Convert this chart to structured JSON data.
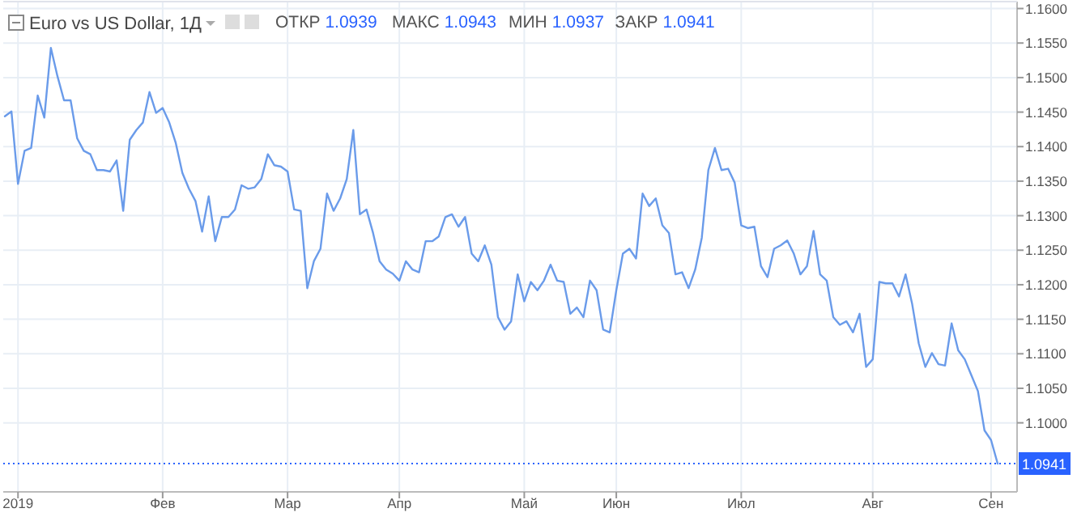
{
  "chart_data": {
    "type": "line",
    "title": "Euro vs US Dollar, 1Д",
    "annotations": [
      "ОТКР 1.0939",
      "МАКС 1.0943",
      "МИН 1.0937",
      "ЗАКР 1.0941"
    ],
    "categories": [
      null,
      null,
      "2019",
      null,
      null,
      null,
      null,
      null,
      null,
      null,
      null,
      null,
      null,
      null,
      null,
      null,
      null,
      null,
      null,
      null,
      null,
      null,
      null,
      null,
      "Фев",
      null,
      null,
      null,
      null,
      null,
      null,
      null,
      null,
      null,
      null,
      null,
      null,
      null,
      null,
      null,
      null,
      null,
      null,
      "Мар",
      null,
      null,
      null,
      null,
      null,
      null,
      null,
      null,
      null,
      null,
      null,
      null,
      null,
      null,
      null,
      null,
      "Апр",
      null,
      null,
      null,
      null,
      null,
      null,
      null,
      null,
      null,
      null,
      null,
      null,
      null,
      null,
      null,
      null,
      null,
      null,
      "Май",
      null,
      null,
      null,
      null,
      null,
      null,
      null,
      null,
      null,
      null,
      null,
      null,
      null,
      "Июн",
      null,
      null,
      null,
      null,
      null,
      null,
      null,
      null,
      null,
      null,
      null,
      null,
      null,
      null,
      null,
      null,
      null,
      null,
      "Июл",
      null,
      null,
      null,
      null,
      null,
      null,
      null,
      null,
      null,
      null,
      null,
      null,
      null,
      null,
      null,
      null,
      null,
      null,
      null,
      "Авг",
      null,
      null,
      null,
      null,
      null,
      null,
      null,
      null,
      null,
      null,
      null,
      null,
      null,
      null,
      null,
      null,
      null,
      "Сен",
      null
    ],
    "series": [
      {
        "color": "#6a9bea",
        "values": [
          1.1444,
          1.1451,
          1.1346,
          1.1394,
          1.1398,
          1.1474,
          1.1442,
          1.1543,
          1.1502,
          1.1467,
          1.1467,
          1.1412,
          1.1394,
          1.1389,
          1.1366,
          1.1366,
          1.1364,
          1.138,
          1.1307,
          1.141,
          1.1424,
          1.1435,
          1.1479,
          1.1449,
          1.1456,
          1.1435,
          1.1405,
          1.1362,
          1.1339,
          1.1321,
          1.1277,
          1.1328,
          1.1263,
          1.1298,
          1.1298,
          1.1309,
          1.1344,
          1.1339,
          1.1341,
          1.1353,
          1.1389,
          1.1373,
          1.1371,
          1.1364,
          1.1309,
          1.1307,
          1.1195,
          1.1234,
          1.1252,
          1.1332,
          1.1307,
          1.1325,
          1.1353,
          1.1424,
          1.1302,
          1.1309,
          1.1275,
          1.1234,
          1.1222,
          1.1216,
          1.1206,
          1.1234,
          1.1222,
          1.1218,
          1.1263,
          1.1263,
          1.127,
          1.1298,
          1.1302,
          1.1284,
          1.1298,
          1.1245,
          1.1234,
          1.1257,
          1.1229,
          1.1153,
          1.1135,
          1.1147,
          1.1215,
          1.1176,
          1.1204,
          1.1192,
          1.1206,
          1.1229,
          1.1206,
          1.1204,
          1.1158,
          1.1167,
          1.1153,
          1.1206,
          1.1192,
          1.1135,
          1.1131,
          1.1192,
          1.1245,
          1.1252,
          1.1238,
          1.1332,
          1.1314,
          1.1325,
          1.1286,
          1.1275,
          1.1215,
          1.1218,
          1.1195,
          1.1222,
          1.1268,
          1.1366,
          1.1398,
          1.1366,
          1.1368,
          1.1348,
          1.1286,
          1.1282,
          1.1284,
          1.1227,
          1.1211,
          1.1252,
          1.1257,
          1.1264,
          1.1245,
          1.1215,
          1.1227,
          1.1278,
          1.1215,
          1.1206,
          1.1153,
          1.1142,
          1.1147,
          1.1131,
          1.1158,
          1.1081,
          1.1092,
          1.1204,
          1.1202,
          1.1202,
          1.1183,
          1.1215,
          1.1172,
          1.1115,
          1.1081,
          1.1101,
          1.1085,
          1.1083,
          1.1144,
          1.1105,
          1.1092,
          1.1069,
          1.1046,
          1.0989,
          1.0975,
          1.0941
        ]
      }
    ],
    "ylim": [
      1.09,
      1.161
    ],
    "yticks": [
      {
        "value": 1.1,
        "label": "1.1000"
      },
      {
        "value": 1.105,
        "label": "1.1050"
      },
      {
        "value": 1.11,
        "label": "1.1100"
      },
      {
        "value": 1.115,
        "label": "1.1150"
      },
      {
        "value": 1.12,
        "label": "1.1200"
      },
      {
        "value": 1.125,
        "label": "1.1250"
      },
      {
        "value": 1.13,
        "label": "1.1300"
      },
      {
        "value": 1.135,
        "label": "1.1350"
      },
      {
        "value": 1.14,
        "label": "1.1400"
      },
      {
        "value": 1.145,
        "label": "1.1450"
      },
      {
        "value": 1.15,
        "label": "1.1500"
      },
      {
        "value": 1.155,
        "label": "1.1550"
      },
      {
        "value": 1.16,
        "label": "1.1600"
      }
    ],
    "ref_lines": [
      {
        "axis": "y",
        "value": 1.0941,
        "label": "1.0941",
        "color": "#2962ff",
        "line_style": "dotted"
      }
    ],
    "grid": true,
    "marker": "none",
    "line_style": "solid"
  }
}
